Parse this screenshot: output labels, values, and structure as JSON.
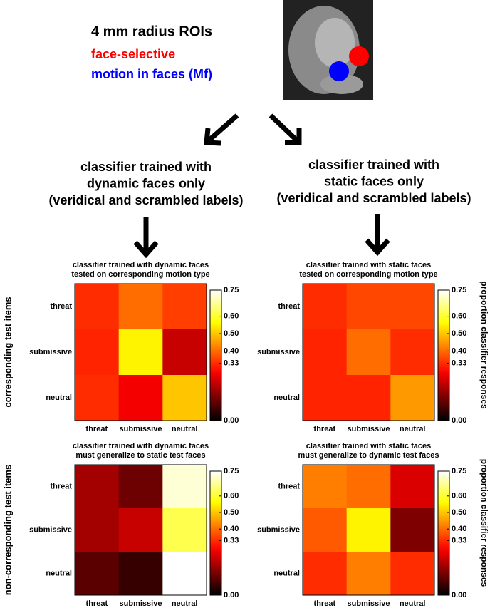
{
  "header": {
    "title": "4 mm radius ROIs",
    "legend": [
      {
        "label": "face-selective",
        "color": "#ff0000"
      },
      {
        "label": "motion in faces (Mf)",
        "color": "#0000ff"
      }
    ]
  },
  "captions": [
    [
      "classifier trained with",
      "dynamic faces only",
      "(veridical and scrambled labels)"
    ],
    [
      "classifier trained with",
      "static faces only",
      "(veridical and scrambled labels)"
    ]
  ],
  "chart_data": [
    {
      "type": "heatmap",
      "title": [
        "classifier trained with dynamic faces",
        "tested on corresponding motion type"
      ],
      "ylabel": "corresponding test items",
      "categories": [
        "threat",
        "submissive",
        "neutral"
      ],
      "rows": [
        "threat",
        "submissive",
        "neutral"
      ],
      "values": [
        [
          0.33,
          0.4,
          0.35
        ],
        [
          0.32,
          0.55,
          0.22
        ],
        [
          0.33,
          0.27,
          0.5
        ]
      ],
      "colormap": "hot",
      "zlim": [
        0,
        0.75
      ],
      "zticks": [
        {
          "value": 0,
          "label": "0.00"
        },
        0.33,
        {
          "value": 0.4,
          "label": "0.40"
        },
        {
          "value": 0.5,
          "label": "0.50"
        },
        {
          "value": 0.6,
          "label": "0.60"
        },
        0.75
      ]
    },
    {
      "type": "heatmap",
      "title": [
        "classifier trained with static faces",
        "tested on corresponding motion type"
      ],
      "colorbar_label": "proportion classifier responses",
      "categories": [
        "threat",
        "submissive",
        "neutral"
      ],
      "rows": [
        "threat",
        "submissive",
        "neutral"
      ],
      "values": [
        [
          0.33,
          0.36,
          0.36
        ],
        [
          0.32,
          0.4,
          0.33
        ],
        [
          0.32,
          0.32,
          0.45
        ]
      ],
      "colormap": "hot",
      "zlim": [
        0,
        0.75
      ],
      "zticks": [
        {
          "value": 0,
          "label": "0.00"
        },
        0.33,
        {
          "value": 0.4,
          "label": "0.40"
        },
        {
          "value": 0.5,
          "label": "0.50"
        },
        {
          "value": 0.6,
          "label": "0.60"
        },
        0.75
      ]
    },
    {
      "type": "heatmap",
      "title": [
        "classifier trained with dynamic faces",
        "must generalize to static test faces"
      ],
      "ylabel": "non-corresponding test items",
      "categories": [
        "threat",
        "submissive",
        "neutral"
      ],
      "rows": [
        "threat",
        "submissive",
        "neutral"
      ],
      "values": [
        [
          0.18,
          0.12,
          0.72
        ],
        [
          0.18,
          0.22,
          0.62
        ],
        [
          0.1,
          0.06,
          0.75
        ]
      ],
      "colormap": "hot",
      "zlim": [
        0,
        0.75
      ],
      "zticks": [
        {
          "value": 0,
          "label": "0.00"
        },
        0.33,
        {
          "value": 0.4,
          "label": "0.40"
        },
        {
          "value": 0.5,
          "label": "0.50"
        },
        {
          "value": 0.6,
          "label": "0.60"
        },
        0.75
      ]
    },
    {
      "type": "heatmap",
      "title": [
        "classifier trained with static faces",
        "must generalize to dynamic test faces"
      ],
      "colorbar_label": "proportion classifier responses",
      "categories": [
        "threat",
        "submissive",
        "neutral"
      ],
      "rows": [
        "threat",
        "submissive",
        "neutral"
      ],
      "values": [
        [
          0.42,
          0.4,
          0.24
        ],
        [
          0.38,
          0.55,
          0.14
        ],
        [
          0.33,
          0.42,
          0.33
        ]
      ],
      "colormap": "hot",
      "zlim": [
        0,
        0.75
      ],
      "zticks": [
        {
          "value": 0,
          "label": "0.00"
        },
        0.33,
        {
          "value": 0.4,
          "label": "0.40"
        },
        {
          "value": 0.5,
          "label": "0.50"
        },
        {
          "value": 0.6,
          "label": "0.60"
        },
        0.75
      ]
    }
  ]
}
